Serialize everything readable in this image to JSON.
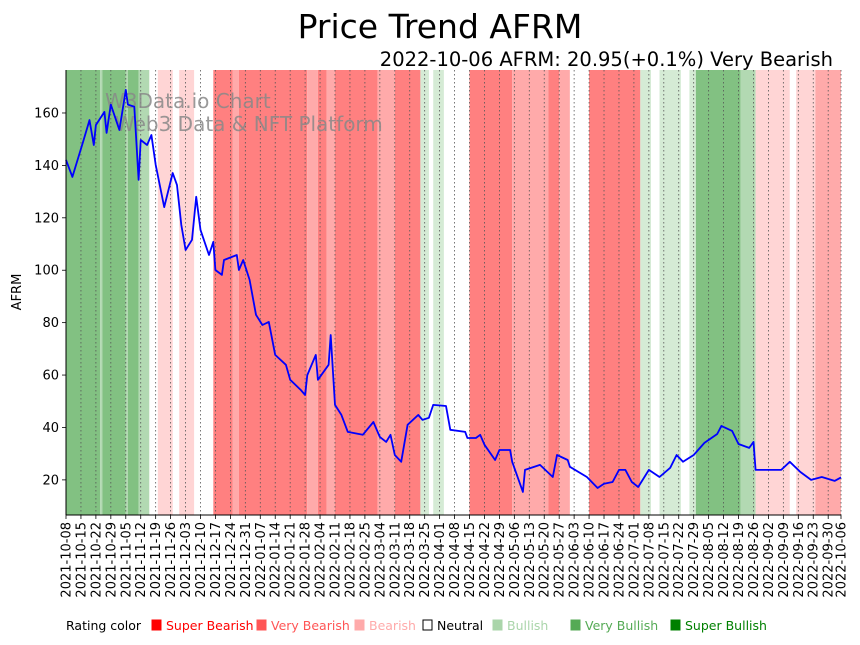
{
  "chart_data": {
    "type": "line",
    "title": "Price Trend AFRM",
    "subtitle": "2022-10-06 AFRM: 20.95(+0.1%) Very Bearish",
    "ylabel": "AFRM",
    "xlabel": "",
    "ylim": [
      6.6,
      176.4
    ],
    "x_start": "2021-10-08",
    "x_days_total": 363,
    "yticks": [
      20,
      40,
      60,
      80,
      100,
      120,
      140,
      160
    ],
    "xticks": [
      "2021-10-08",
      "2021-10-15",
      "2021-10-22",
      "2021-10-29",
      "2021-11-05",
      "2021-11-12",
      "2021-11-19",
      "2021-11-26",
      "2021-12-03",
      "2021-12-10",
      "2021-12-17",
      "2021-12-24",
      "2021-12-31",
      "2022-01-07",
      "2022-01-14",
      "2022-01-21",
      "2022-01-28",
      "2022-02-04",
      "2022-02-11",
      "2022-02-18",
      "2022-02-25",
      "2022-03-04",
      "2022-03-11",
      "2022-03-18",
      "2022-03-25",
      "2022-04-01",
      "2022-04-08",
      "2022-04-15",
      "2022-04-22",
      "2022-04-29",
      "2022-05-06",
      "2022-05-13",
      "2022-05-20",
      "2022-05-27",
      "2022-06-03",
      "2022-06-10",
      "2022-06-17",
      "2022-06-24",
      "2022-07-01",
      "2022-07-08",
      "2022-07-15",
      "2022-07-22",
      "2022-07-29",
      "2022-08-05",
      "2022-08-12",
      "2022-08-19",
      "2022-08-26",
      "2022-09-02",
      "2022-09-09",
      "2022-09-16",
      "2022-09-23",
      "2022-09-30",
      "2022-10-06"
    ],
    "grid": "vertical dotted at x ticks",
    "series": [
      {
        "name": "AFRM",
        "color": "#0000ff",
        "points": [
          [
            0,
            142.1
          ],
          [
            3,
            135.6
          ],
          [
            8,
            149
          ],
          [
            11,
            157.3
          ],
          [
            13,
            147.8
          ],
          [
            14,
            155.4
          ],
          [
            18,
            160.4
          ],
          [
            19,
            152.4
          ],
          [
            21,
            163.2
          ],
          [
            25,
            153.5
          ],
          [
            28,
            168.8
          ],
          [
            29,
            163.2
          ],
          [
            32,
            162.4
          ],
          [
            34,
            134.5
          ],
          [
            35,
            149.7
          ],
          [
            38,
            147.8
          ],
          [
            40,
            151.6
          ],
          [
            42,
            140.2
          ],
          [
            46,
            124.1
          ],
          [
            50,
            137.1
          ],
          [
            52,
            132.5
          ],
          [
            54,
            117.3
          ],
          [
            56,
            107.7
          ],
          [
            59,
            111.6
          ],
          [
            61,
            128
          ],
          [
            63,
            115.4
          ],
          [
            67,
            105.8
          ],
          [
            69,
            110.8
          ],
          [
            70,
            100.1
          ],
          [
            73,
            98.2
          ],
          [
            74,
            103.9
          ],
          [
            80,
            105.8
          ],
          [
            81,
            100.1
          ],
          [
            83,
            103.9
          ],
          [
            86,
            96.3
          ],
          [
            89,
            83
          ],
          [
            92,
            79.1
          ],
          [
            95,
            80.3
          ],
          [
            98,
            67.7
          ],
          [
            103,
            63.9
          ],
          [
            105,
            58.2
          ],
          [
            110,
            54.3
          ],
          [
            112,
            52.4
          ],
          [
            113,
            60
          ],
          [
            117,
            67.7
          ],
          [
            118,
            58.2
          ],
          [
            123,
            63.9
          ],
          [
            124,
            75.3
          ],
          [
            126,
            48.6
          ],
          [
            129,
            44.8
          ],
          [
            132,
            38.3
          ],
          [
            139,
            37.2
          ],
          [
            144,
            42.1
          ],
          [
            147,
            36.4
          ],
          [
            150,
            34.5
          ],
          [
            152,
            37.2
          ],
          [
            154,
            29.5
          ],
          [
            157,
            26.9
          ],
          [
            160,
            41
          ],
          [
            165,
            44.8
          ],
          [
            167,
            42.9
          ],
          [
            170,
            43.7
          ],
          [
            172,
            48.6
          ],
          [
            178,
            48.2
          ],
          [
            180,
            39.1
          ],
          [
            187,
            38.3
          ],
          [
            188,
            36
          ],
          [
            192,
            36
          ],
          [
            194,
            37.2
          ],
          [
            196,
            33.4
          ],
          [
            201,
            27.6
          ],
          [
            203,
            31.4
          ],
          [
            208,
            31.4
          ],
          [
            209,
            26.9
          ],
          [
            214,
            15.4
          ],
          [
            215,
            23.8
          ],
          [
            222,
            25.7
          ],
          [
            228,
            21.1
          ],
          [
            230,
            29.5
          ],
          [
            235,
            27.6
          ],
          [
            236,
            25
          ],
          [
            244,
            21.1
          ],
          [
            249,
            16.9
          ],
          [
            252,
            18.5
          ],
          [
            256,
            19.2
          ],
          [
            259,
            23.8
          ],
          [
            262,
            23.8
          ],
          [
            265,
            19.2
          ],
          [
            268,
            17.3
          ],
          [
            273,
            23.8
          ],
          [
            278,
            21.1
          ],
          [
            283,
            24.6
          ],
          [
            286,
            29.5
          ],
          [
            289,
            26.9
          ],
          [
            294,
            29.5
          ],
          [
            299,
            34.1
          ],
          [
            305,
            37.5
          ],
          [
            307,
            40.6
          ],
          [
            312,
            38.7
          ],
          [
            315,
            33.7
          ],
          [
            320,
            32.2
          ],
          [
            322,
            34.5
          ],
          [
            323,
            23.8
          ],
          [
            335,
            23.8
          ],
          [
            339,
            26.9
          ],
          [
            344,
            23
          ],
          [
            349,
            20
          ],
          [
            354,
            21.1
          ],
          [
            360,
            19.6
          ],
          [
            363,
            20.95
          ]
        ]
      }
    ],
    "rating_colors": {
      "SB": "#ff8080",
      "VB_R": "#ffaaaa",
      "BR": "#ffd5d5",
      "N": "#ffffff",
      "BU": "#d5ebd5",
      "VBU": "#b2d9b2",
      "SBU": "#82c182"
    },
    "rating_bands": [
      [
        0,
        16,
        "SBU"
      ],
      [
        16,
        17,
        "VBU"
      ],
      [
        17,
        28,
        "SBU"
      ],
      [
        28,
        29,
        "VBU"
      ],
      [
        29,
        34,
        "SBU"
      ],
      [
        34,
        39,
        "VBU"
      ],
      [
        43,
        50,
        "BR"
      ],
      [
        53,
        60,
        "BR"
      ],
      [
        69,
        78,
        "SB"
      ],
      [
        78,
        81,
        "VB_R"
      ],
      [
        81,
        113,
        "SB"
      ],
      [
        113,
        118,
        "VB_R"
      ],
      [
        118,
        122,
        "SB"
      ],
      [
        122,
        126,
        "VB_R"
      ],
      [
        126,
        146,
        "SB"
      ],
      [
        146,
        154,
        "VB_R"
      ],
      [
        154,
        166,
        "SB"
      ],
      [
        166,
        170,
        "BU"
      ],
      [
        172,
        177,
        "BU"
      ],
      [
        189,
        209,
        "SB"
      ],
      [
        209,
        226,
        "VB_R"
      ],
      [
        226,
        231,
        "SB"
      ],
      [
        231,
        236,
        "VB_R"
      ],
      [
        245,
        269,
        "SB"
      ],
      [
        269,
        274,
        "BU"
      ],
      [
        278,
        288,
        "BU"
      ],
      [
        292,
        295,
        "BU"
      ],
      [
        295,
        316,
        "SBU"
      ],
      [
        316,
        323,
        "VBU"
      ],
      [
        323,
        339,
        "BR"
      ],
      [
        342,
        351,
        "BR"
      ],
      [
        351,
        363,
        "VB_R"
      ]
    ],
    "watermark": [
      "W3Data.io Chart",
      "Web3 Data & NFT Platform"
    ],
    "legend": {
      "title": "Rating color",
      "placement": "bottom",
      "items": [
        {
          "label": "Super Bearish",
          "color": "#ff0000",
          "border": "#ff0000"
        },
        {
          "label": "Very Bearish",
          "color": "#ff5555",
          "border": "#ff5555"
        },
        {
          "label": "Bearish",
          "color": "#ffaaaa",
          "border": "#ffaaaa"
        },
        {
          "label": "Neutral",
          "color": "#ffffff",
          "border": "#000000",
          "text": "#000000"
        },
        {
          "label": "Bullish",
          "color": "#aad5aa",
          "border": "#aad5aa"
        },
        {
          "label": "Very Bullish",
          "color": "#55aa55",
          "border": "#55aa55"
        },
        {
          "label": "Super Bullish",
          "color": "#008000",
          "border": "#008000"
        }
      ]
    }
  }
}
